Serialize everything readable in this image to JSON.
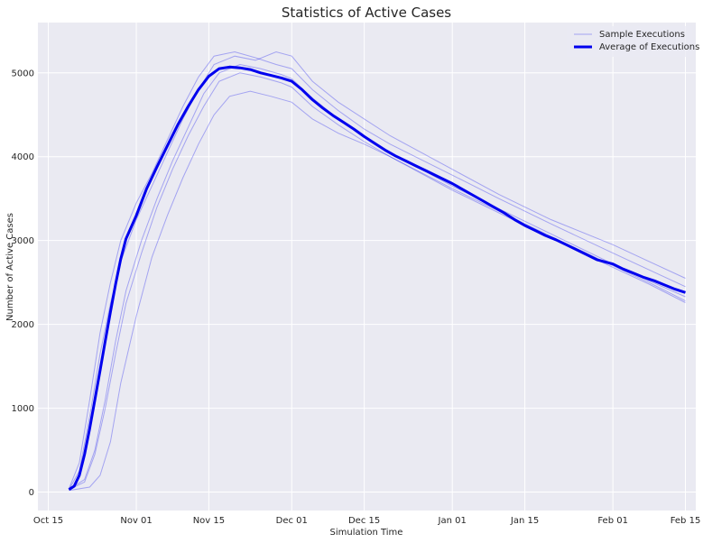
{
  "chart_data": {
    "type": "line",
    "title": "Statistics of Active Cases",
    "xlabel": "Simulation Time",
    "ylabel": "Number of Active Cases",
    "x_axis_type": "date",
    "xlim": [
      "2020-10-13",
      "2021-02-17"
    ],
    "ylim": [
      -220,
      5600
    ],
    "x_ticks": [
      {
        "date": "2020-10-15",
        "label": "Oct 15"
      },
      {
        "date": "2020-11-01",
        "label": "Nov 01"
      },
      {
        "date": "2020-11-15",
        "label": "Nov 15"
      },
      {
        "date": "2020-12-01",
        "label": "Dec 01"
      },
      {
        "date": "2020-12-15",
        "label": "Dec 15"
      },
      {
        "date": "2021-01-01",
        "label": "Jan 01"
      },
      {
        "date": "2021-01-15",
        "label": "Jan 15"
      },
      {
        "date": "2021-02-01",
        "label": "Feb 01"
      },
      {
        "date": "2021-02-15",
        "label": "Feb 15"
      }
    ],
    "y_ticks": [
      0,
      1000,
      2000,
      3000,
      4000,
      5000
    ],
    "grid": true,
    "legend_position": "top-right",
    "series": [
      {
        "name": "Average of Executions",
        "role": "average",
        "color": "#0000ee",
        "points": [
          [
            "2020-10-19",
            30
          ],
          [
            "2020-10-20",
            70
          ],
          [
            "2020-10-21",
            200
          ],
          [
            "2020-10-22",
            450
          ],
          [
            "2020-10-23",
            760
          ],
          [
            "2020-10-24",
            1100
          ],
          [
            "2020-10-25",
            1450
          ],
          [
            "2020-10-26",
            1800
          ],
          [
            "2020-10-27",
            2150
          ],
          [
            "2020-10-28",
            2480
          ],
          [
            "2020-10-29",
            2780
          ],
          [
            "2020-10-30",
            3020
          ],
          [
            "2020-11-01",
            3300
          ],
          [
            "2020-11-03",
            3620
          ],
          [
            "2020-11-05",
            3880
          ],
          [
            "2020-11-07",
            4130
          ],
          [
            "2020-11-09",
            4380
          ],
          [
            "2020-11-11",
            4600
          ],
          [
            "2020-11-13",
            4800
          ],
          [
            "2020-11-15",
            4960
          ],
          [
            "2020-11-17",
            5050
          ],
          [
            "2020-11-19",
            5070
          ],
          [
            "2020-11-21",
            5060
          ],
          [
            "2020-11-23",
            5040
          ],
          [
            "2020-11-25",
            5000
          ],
          [
            "2020-11-27",
            4970
          ],
          [
            "2020-11-29",
            4940
          ],
          [
            "2020-12-01",
            4900
          ],
          [
            "2020-12-03",
            4800
          ],
          [
            "2020-12-05",
            4680
          ],
          [
            "2020-12-07",
            4580
          ],
          [
            "2020-12-09",
            4490
          ],
          [
            "2020-12-11",
            4410
          ],
          [
            "2020-12-13",
            4330
          ],
          [
            "2020-12-15",
            4240
          ],
          [
            "2020-12-17",
            4160
          ],
          [
            "2020-12-19",
            4080
          ],
          [
            "2020-12-21",
            4010
          ],
          [
            "2020-12-23",
            3950
          ],
          [
            "2020-12-25",
            3890
          ],
          [
            "2020-12-27",
            3830
          ],
          [
            "2020-12-29",
            3770
          ],
          [
            "2021-01-01",
            3680
          ],
          [
            "2021-01-03",
            3610
          ],
          [
            "2021-01-05",
            3540
          ],
          [
            "2021-01-07",
            3470
          ],
          [
            "2021-01-09",
            3400
          ],
          [
            "2021-01-11",
            3330
          ],
          [
            "2021-01-13",
            3250
          ],
          [
            "2021-01-15",
            3180
          ],
          [
            "2021-01-17",
            3120
          ],
          [
            "2021-01-19",
            3060
          ],
          [
            "2021-01-21",
            3010
          ],
          [
            "2021-01-23",
            2950
          ],
          [
            "2021-01-25",
            2890
          ],
          [
            "2021-01-27",
            2830
          ],
          [
            "2021-01-29",
            2770
          ],
          [
            "2021-02-01",
            2720
          ],
          [
            "2021-02-03",
            2660
          ],
          [
            "2021-02-05",
            2610
          ],
          [
            "2021-02-07",
            2560
          ],
          [
            "2021-02-09",
            2520
          ],
          [
            "2021-02-11",
            2470
          ],
          [
            "2021-02-13",
            2420
          ],
          [
            "2021-02-15",
            2380
          ]
        ]
      },
      {
        "name": "Sample Executions",
        "role": "sample",
        "color": "#0000ee",
        "points": [
          [
            "2020-10-19",
            40
          ],
          [
            "2020-10-21",
            350
          ],
          [
            "2020-10-23",
            1100
          ],
          [
            "2020-10-25",
            1900
          ],
          [
            "2020-10-27",
            2500
          ],
          [
            "2020-10-29",
            3000
          ],
          [
            "2020-11-01",
            3450
          ],
          [
            "2020-11-04",
            3800
          ],
          [
            "2020-11-07",
            4200
          ],
          [
            "2020-11-10",
            4600
          ],
          [
            "2020-11-13",
            4950
          ],
          [
            "2020-11-16",
            5200
          ],
          [
            "2020-11-20",
            5250
          ],
          [
            "2020-11-24",
            5180
          ],
          [
            "2020-11-28",
            5100
          ],
          [
            "2020-12-01",
            5050
          ],
          [
            "2020-12-05",
            4800
          ],
          [
            "2020-12-10",
            4550
          ],
          [
            "2020-12-15",
            4330
          ],
          [
            "2020-12-20",
            4150
          ],
          [
            "2021-01-01",
            3780
          ],
          [
            "2021-01-10",
            3500
          ],
          [
            "2021-01-20",
            3200
          ],
          [
            "2021-02-01",
            2850
          ],
          [
            "2021-02-08",
            2650
          ],
          [
            "2021-02-15",
            2450
          ]
        ]
      },
      {
        "role": "sample",
        "color": "#0000ee",
        "points": [
          [
            "2020-10-19",
            30
          ],
          [
            "2020-10-22",
            150
          ],
          [
            "2020-10-24",
            500
          ],
          [
            "2020-10-26",
            1100
          ],
          [
            "2020-10-28",
            1800
          ],
          [
            "2020-10-30",
            2400
          ],
          [
            "2020-11-02",
            3000
          ],
          [
            "2020-11-05",
            3500
          ],
          [
            "2020-11-08",
            3950
          ],
          [
            "2020-11-11",
            4350
          ],
          [
            "2020-11-14",
            4750
          ],
          [
            "2020-11-17",
            5000
          ],
          [
            "2020-11-21",
            5100
          ],
          [
            "2020-11-25",
            5050
          ],
          [
            "2020-11-29",
            4980
          ],
          [
            "2020-12-01",
            4930
          ],
          [
            "2020-12-05",
            4700
          ],
          [
            "2020-12-10",
            4450
          ],
          [
            "2020-12-15",
            4230
          ],
          [
            "2020-12-20",
            4050
          ],
          [
            "2021-01-01",
            3650
          ],
          [
            "2021-01-10",
            3380
          ],
          [
            "2021-01-20",
            3080
          ],
          [
            "2021-02-01",
            2720
          ],
          [
            "2021-02-08",
            2520
          ],
          [
            "2021-02-15",
            2330
          ]
        ]
      },
      {
        "role": "sample",
        "color": "#0000ee",
        "points": [
          [
            "2020-10-19",
            20
          ],
          [
            "2020-10-23",
            60
          ],
          [
            "2020-10-25",
            200
          ],
          [
            "2020-10-27",
            600
          ],
          [
            "2020-10-29",
            1300
          ],
          [
            "2020-11-01",
            2100
          ],
          [
            "2020-11-04",
            2800
          ],
          [
            "2020-11-07",
            3300
          ],
          [
            "2020-11-10",
            3750
          ],
          [
            "2020-11-13",
            4150
          ],
          [
            "2020-11-16",
            4500
          ],
          [
            "2020-11-19",
            4720
          ],
          [
            "2020-11-23",
            4780
          ],
          [
            "2020-11-27",
            4720
          ],
          [
            "2020-12-01",
            4650
          ],
          [
            "2020-12-05",
            4450
          ],
          [
            "2020-12-10",
            4280
          ],
          [
            "2020-12-15",
            4150
          ],
          [
            "2020-12-20",
            4000
          ],
          [
            "2021-01-01",
            3620
          ],
          [
            "2021-01-10",
            3350
          ],
          [
            "2021-01-20",
            3050
          ],
          [
            "2021-02-01",
            2700
          ],
          [
            "2021-02-08",
            2500
          ],
          [
            "2021-02-15",
            2280
          ]
        ]
      },
      {
        "role": "sample",
        "color": "#0000ee",
        "points": [
          [
            "2020-10-19",
            30
          ],
          [
            "2020-10-21",
            250
          ],
          [
            "2020-10-23",
            900
          ],
          [
            "2020-10-25",
            1650
          ],
          [
            "2020-10-27",
            2250
          ],
          [
            "2020-10-29",
            2750
          ],
          [
            "2020-11-01",
            3250
          ],
          [
            "2020-11-04",
            3650
          ],
          [
            "2020-11-07",
            4050
          ],
          [
            "2020-11-10",
            4450
          ],
          [
            "2020-11-13",
            4800
          ],
          [
            "2020-11-16",
            5100
          ],
          [
            "2020-11-20",
            5200
          ],
          [
            "2020-11-24",
            5150
          ],
          [
            "2020-11-28",
            5250
          ],
          [
            "2020-12-01",
            5200
          ],
          [
            "2020-12-05",
            4900
          ],
          [
            "2020-12-10",
            4650
          ],
          [
            "2020-12-15",
            4450
          ],
          [
            "2020-12-20",
            4250
          ],
          [
            "2021-01-01",
            3850
          ],
          [
            "2021-01-10",
            3550
          ],
          [
            "2021-01-20",
            3250
          ],
          [
            "2021-02-01",
            2950
          ],
          [
            "2021-02-08",
            2750
          ],
          [
            "2021-02-15",
            2550
          ]
        ]
      },
      {
        "role": "sample",
        "color": "#0000ee",
        "points": [
          [
            "2020-10-19",
            30
          ],
          [
            "2020-10-22",
            120
          ],
          [
            "2020-10-24",
            450
          ],
          [
            "2020-10-26",
            1000
          ],
          [
            "2020-10-28",
            1650
          ],
          [
            "2020-10-30",
            2250
          ],
          [
            "2020-11-02",
            2850
          ],
          [
            "2020-11-05",
            3400
          ],
          [
            "2020-11-08",
            3850
          ],
          [
            "2020-11-11",
            4250
          ],
          [
            "2020-11-14",
            4600
          ],
          [
            "2020-11-17",
            4900
          ],
          [
            "2020-11-21",
            5000
          ],
          [
            "2020-11-25",
            4950
          ],
          [
            "2020-11-29",
            4880
          ],
          [
            "2020-12-01",
            4830
          ],
          [
            "2020-12-05",
            4600
          ],
          [
            "2020-12-10",
            4380
          ],
          [
            "2020-12-15",
            4180
          ],
          [
            "2020-12-20",
            4000
          ],
          [
            "2021-01-01",
            3600
          ],
          [
            "2021-01-10",
            3330
          ],
          [
            "2021-01-20",
            3030
          ],
          [
            "2021-02-01",
            2680
          ],
          [
            "2021-02-08",
            2480
          ],
          [
            "2021-02-15",
            2260
          ]
        ]
      }
    ]
  }
}
